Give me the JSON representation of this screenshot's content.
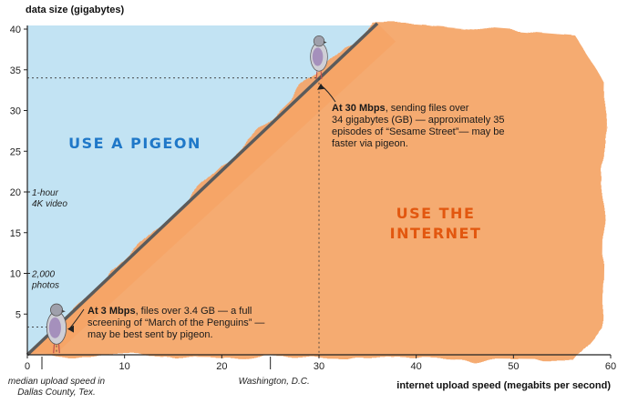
{
  "chart_data": {
    "type": "area",
    "xlabel": "internet upload speed (megabits per second)",
    "ylabel": "data size (gigabytes)",
    "xlim": [
      0,
      60
    ],
    "ylim": [
      0,
      40
    ],
    "x_ticks": [
      0,
      10,
      20,
      30,
      40,
      50,
      60
    ],
    "y_ticks": [
      5,
      10,
      15,
      20,
      25,
      30,
      35,
      40
    ],
    "line": {
      "x": [
        0,
        36
      ],
      "y": [
        0,
        40.7
      ]
    },
    "regions": [
      {
        "label": "USE A PIGEON",
        "color": "#bfe2f2"
      },
      {
        "label_lines": [
          "USE THE",
          "INTERNET"
        ],
        "color": "#f5a466"
      }
    ],
    "reference_marks": [
      {
        "axis": "y",
        "value": 20,
        "lines": [
          "1-hour",
          "4K video"
        ]
      },
      {
        "axis": "y",
        "value": 10,
        "lines": [
          "2,000",
          "photos"
        ]
      },
      {
        "axis": "x",
        "value": 1.5,
        "lines": [
          "median upload speed in",
          "Dallas County, Tex."
        ]
      },
      {
        "axis": "x",
        "value": 25,
        "lines": [
          "Washington, D.C."
        ]
      }
    ],
    "annotations": [
      {
        "x": 30,
        "y": 34,
        "lines": [
          {
            "bold": "At 30 Mbps",
            "text": ", sending files over"
          },
          {
            "bold": "",
            "text": "34 gigabytes (GB) — approximately 35"
          },
          {
            "bold": "",
            "text": "episodes of “Sesame Street”— may be"
          },
          {
            "bold": "",
            "text": "faster via pigeon."
          }
        ]
      },
      {
        "x": 3,
        "y": 3.4,
        "lines": [
          {
            "bold": "At 3 Mbps",
            "text": ", files over 3.4 GB — a full"
          },
          {
            "bold": "",
            "text": "screening of “March of the Penguins” —"
          },
          {
            "bold": "",
            "text": "may be best sent by pigeon."
          }
        ]
      }
    ],
    "colors": {
      "pigeon_region": "#bfe2f2",
      "internet_region": "#f5a466",
      "line": "#5b5b5b",
      "region_text_blue": "#1f78c8",
      "region_text_orange": "#e2570f"
    }
  }
}
